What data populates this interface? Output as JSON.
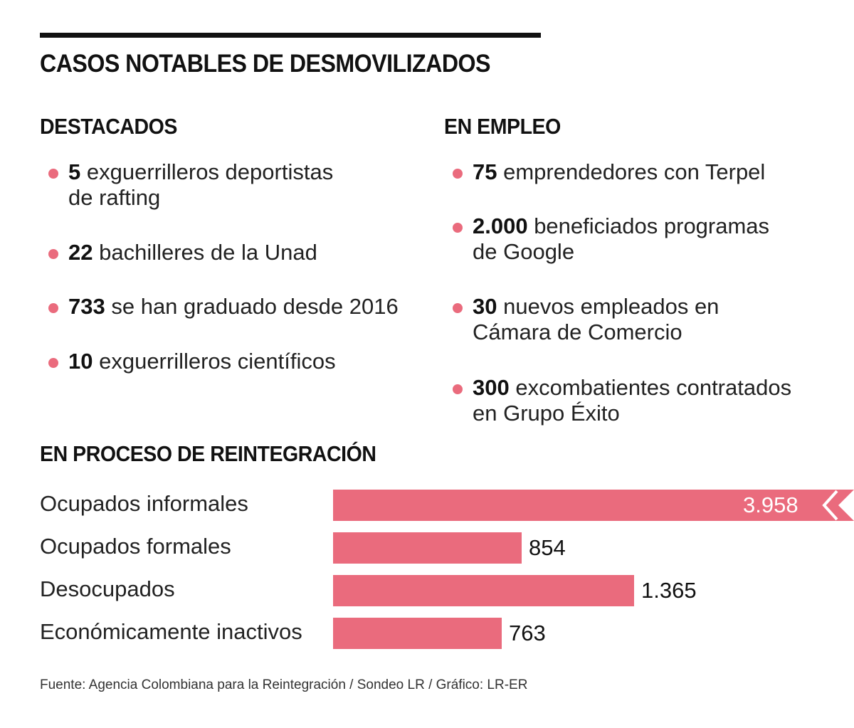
{
  "title": "CASOS NOTABLES DE DESMOVILIZADOS",
  "destacados": {
    "heading": "DESTACADOS",
    "items": [
      {
        "num": "5",
        "text": " exguerrilleros deportistas",
        "text2": "de rafting"
      },
      {
        "num": "22",
        "text": " bachilleres de la Unad",
        "text2": ""
      },
      {
        "num": "733",
        "text": " se han graduado desde 2016",
        "text2": ""
      },
      {
        "num": "10",
        "text": " exguerrilleros científicos",
        "text2": ""
      }
    ]
  },
  "empleo": {
    "heading": "EN EMPLEO",
    "items": [
      {
        "num": "75",
        "text": " emprendedores con Terpel",
        "text2": ""
      },
      {
        "num": "2.000",
        "text": " beneficiados programas",
        "text2": "de Google"
      },
      {
        "num": "30",
        "text": " nuevos empleados en",
        "text2": "Cámara de Comercio"
      },
      {
        "num": "300",
        "text": " excombatientes contratados",
        "text2": "en Grupo Éxito"
      }
    ]
  },
  "chart_data": {
    "type": "bar",
    "orientation": "horizontal",
    "title": "EN PROCESO DE REINTEGRACIÓN",
    "categories": [
      "Ocupados informales",
      "Ocupados formales",
      "Desocupados",
      "Económicamente inactivos"
    ],
    "values": [
      3958,
      854,
      1365,
      763
    ],
    "value_labels": [
      "3.958",
      "854",
      "1.365",
      "763"
    ],
    "truncated_bars": [
      0
    ],
    "color": "#ea6b7d"
  },
  "source": "Fuente: Agencia Colombiana para la Reintegración / Sondeo LR / Gráfico: LR-ER"
}
